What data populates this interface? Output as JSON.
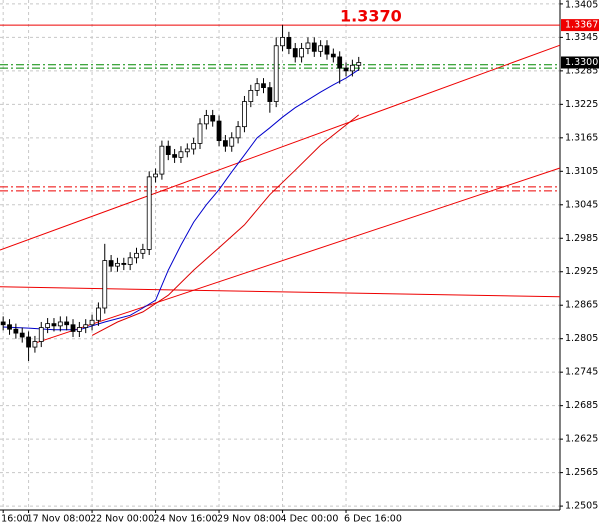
{
  "chart_data": {
    "type": "candlestick",
    "x": [
      0,
      1,
      2,
      3,
      4,
      5,
      6,
      7,
      8,
      9,
      10,
      11,
      12,
      13,
      14,
      15,
      16,
      17,
      18,
      19,
      20,
      21,
      22,
      23,
      24,
      25,
      26,
      27,
      28,
      29,
      30,
      31,
      32,
      33,
      34,
      35,
      36,
      37,
      38,
      39,
      40,
      41,
      42,
      43,
      44,
      45,
      46,
      47,
      48,
      49,
      50,
      51,
      52,
      53,
      54,
      55,
      56
    ],
    "open": [
      1.2835,
      1.283,
      1.2822,
      1.2815,
      1.2808,
      1.279,
      1.28,
      1.2825,
      1.2832,
      1.2828,
      1.2835,
      1.283,
      1.2818,
      1.2825,
      1.283,
      1.2838,
      1.286,
      1.2945,
      1.2935,
      1.294,
      1.2938,
      1.295,
      1.2958,
      1.2965,
      1.3095,
      1.31,
      1.315,
      1.3135,
      1.313,
      1.314,
      1.3145,
      1.3155,
      1.319,
      1.3205,
      1.3195,
      1.316,
      1.315,
      1.3165,
      1.3185,
      1.323,
      1.325,
      1.3262,
      1.3255,
      1.323,
      1.333,
      1.3345,
      1.3325,
      1.331,
      1.3325,
      1.3335,
      1.332,
      1.333,
      1.3315,
      1.331,
      1.329,
      1.3285,
      1.3295
    ],
    "high": [
      1.2845,
      1.284,
      1.2832,
      1.2825,
      1.2818,
      1.281,
      1.2835,
      1.2842,
      1.2842,
      1.2845,
      1.2845,
      1.284,
      1.2835,
      1.284,
      1.2848,
      1.287,
      1.2975,
      1.2955,
      1.295,
      1.295,
      1.296,
      1.2968,
      1.2975,
      1.3105,
      1.311,
      1.316,
      1.316,
      1.3145,
      1.315,
      1.3155,
      1.3165,
      1.32,
      1.3215,
      1.3215,
      1.3205,
      1.317,
      1.3175,
      1.3195,
      1.324,
      1.326,
      1.3272,
      1.3272,
      1.3265,
      1.3345,
      1.3367,
      1.3355,
      1.3335,
      1.3335,
      1.3345,
      1.3345,
      1.334,
      1.334,
      1.3325,
      1.332,
      1.33,
      1.3305,
      1.331
    ],
    "low": [
      1.282,
      1.2812,
      1.2805,
      1.2798,
      1.2765,
      1.278,
      1.279,
      1.2815,
      1.2818,
      1.2818,
      1.282,
      1.2808,
      1.2808,
      1.2815,
      1.282,
      1.2828,
      1.285,
      1.2925,
      1.2925,
      1.2928,
      1.2928,
      1.294,
      1.2948,
      1.2955,
      1.3085,
      1.309,
      1.3125,
      1.312,
      1.312,
      1.313,
      1.3135,
      1.3145,
      1.318,
      1.3185,
      1.315,
      1.314,
      1.314,
      1.3155,
      1.3175,
      1.322,
      1.324,
      1.3245,
      1.321,
      1.322,
      1.332,
      1.3315,
      1.33,
      1.33,
      1.3315,
      1.331,
      1.331,
      1.3305,
      1.33,
      1.3262,
      1.3275,
      1.3275,
      1.3285
    ],
    "close": [
      1.283,
      1.2822,
      1.2815,
      1.2808,
      1.279,
      1.28,
      1.2825,
      1.2832,
      1.2828,
      1.2835,
      1.283,
      1.2818,
      1.2825,
      1.283,
      1.2838,
      1.286,
      1.2945,
      1.2935,
      1.294,
      1.2938,
      1.295,
      1.2958,
      1.2965,
      1.3095,
      1.31,
      1.315,
      1.3135,
      1.313,
      1.314,
      1.3145,
      1.3155,
      1.319,
      1.3205,
      1.3195,
      1.316,
      1.315,
      1.3165,
      1.3185,
      1.323,
      1.325,
      1.3262,
      1.3255,
      1.323,
      1.333,
      1.3345,
      1.3325,
      1.331,
      1.3325,
      1.3335,
      1.332,
      1.333,
      1.3315,
      1.331,
      1.329,
      1.3285,
      1.3295,
      1.33
    ],
    "xlim": [
      -0.5,
      87.7
    ],
    "ylim": [
      1.2498,
      1.3412
    ],
    "yticks": [
      1.3405,
      1.3345,
      1.3285,
      1.3225,
      1.3165,
      1.3105,
      1.3045,
      1.2985,
      1.2925,
      1.2865,
      1.2805,
      1.2745,
      1.2685,
      1.2625,
      1.2565,
      1.2505
    ],
    "xticks": [
      {
        "value": 0,
        "label": "16:00"
      },
      {
        "value": 4,
        "label": "17 Nov 08:00"
      },
      {
        "value": 14,
        "label": "22 Nov 00:00"
      },
      {
        "value": 24,
        "label": "24 Nov 16:00"
      },
      {
        "value": 34,
        "label": "29 Nov 08:00"
      },
      {
        "value": 44,
        "label": "4 Dec 00:00"
      },
      {
        "value": 54,
        "label": "6 Dec 16:00"
      }
    ],
    "grid": true,
    "indicators": [
      {
        "color": "#0000cc",
        "x": [
          0,
          4,
          8,
          12,
          16,
          20,
          22,
          24,
          26,
          28,
          30,
          32,
          34,
          36,
          38,
          40,
          42,
          44,
          46,
          48,
          50,
          52,
          54,
          56
        ],
        "values": [
          1.2826,
          1.2824,
          1.2821,
          1.2821,
          1.2835,
          1.2847,
          1.286,
          1.2874,
          1.2928,
          1.2973,
          1.3014,
          1.3045,
          1.3072,
          1.3104,
          1.3134,
          1.3165,
          1.3183,
          1.3202,
          1.3219,
          1.3233,
          1.3247,
          1.326,
          1.3272,
          1.3287
        ]
      },
      {
        "color": "#dd0000",
        "x": [
          14,
          18,
          22,
          26,
          30,
          34,
          38,
          42,
          46,
          50,
          54,
          56
        ],
        "values": [
          1.2811,
          1.2835,
          1.2853,
          1.2883,
          1.2928,
          1.2968,
          1.3009,
          1.3063,
          1.3107,
          1.3152,
          1.3188,
          1.3206
        ]
      }
    ],
    "trendlines": [
      {
        "color": "#ee0000",
        "x": [
          -0.5,
          87.7
        ],
        "values": [
          1.2964,
          1.3331
        ]
      },
      {
        "color": "#ee0000",
        "x": [
          5,
          87.7
        ],
        "values": [
          1.2797,
          1.3111
        ]
      },
      {
        "color": "#ee0000",
        "x": [
          -0.5,
          87.7
        ],
        "values": [
          1.2898,
          1.288
        ]
      }
    ],
    "hlines": [
      {
        "value": 1.3367,
        "color": "#ee0000",
        "style": "solid"
      },
      {
        "value": 1.3296,
        "color": "#008800",
        "style": "dashdot"
      },
      {
        "value": 1.329,
        "color": "#008800",
        "style": "dashdot"
      },
      {
        "value": 1.3077,
        "color": "#ee0000",
        "style": "dashdot"
      },
      {
        "value": 1.307,
        "color": "#ee0000",
        "style": "dashdot"
      }
    ],
    "line_price_label": 1.3367,
    "current_price": {
      "value": 1.33,
      "label": "1.3300"
    },
    "annotation": "1.3370"
  }
}
